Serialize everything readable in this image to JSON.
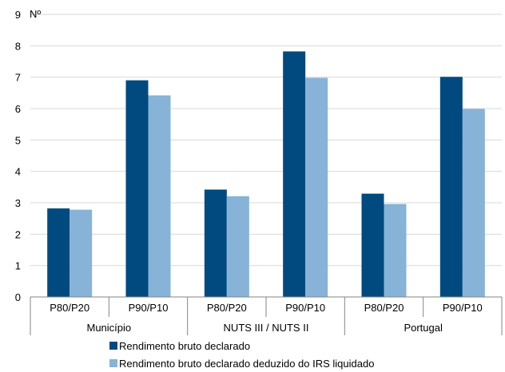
{
  "chart_data": {
    "type": "bar",
    "ylabel": "Nº",
    "ylim": [
      0,
      9
    ],
    "yticks": [
      0,
      1,
      2,
      3,
      4,
      5,
      6,
      7,
      8,
      9
    ],
    "grid": true,
    "legend_position": "bottom",
    "groups": [
      {
        "label": "Município",
        "categories": [
          "P80/P20",
          "P90/P10"
        ]
      },
      {
        "label": "NUTS III / NUTS II",
        "categories": [
          "P80/P20",
          "P90/P10"
        ]
      },
      {
        "label": "Portugal",
        "categories": [
          "P80/P20",
          "P90/P10"
        ]
      }
    ],
    "series": [
      {
        "name": "Rendimento bruto declarado",
        "color": "#004a7f",
        "values": [
          2.82,
          6.9,
          3.42,
          7.82,
          3.29,
          7.01
        ]
      },
      {
        "name": "Rendimento bruto declarado deduzido do IRS liquidado",
        "color": "#86b3d7",
        "values": [
          2.78,
          6.42,
          3.21,
          6.98,
          2.96,
          5.99
        ]
      }
    ]
  }
}
